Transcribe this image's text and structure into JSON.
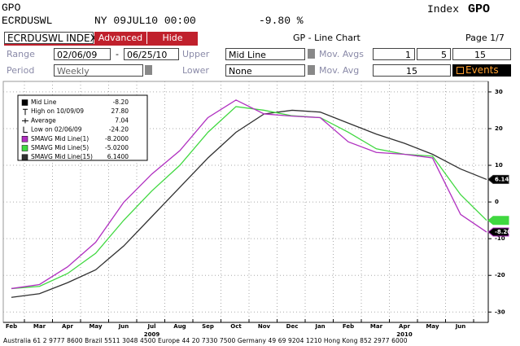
{
  "header": {
    "function": "GPO",
    "ticker": "ECRDUSWL",
    "datetime": "NY 09JUL10 00:00",
    "change": "-9.80 %",
    "screen_prefix": "Index",
    "screen": "GPO"
  },
  "toolbar": {
    "security": "ECRDUSWL INDEX",
    "buttons": [
      "Advanced",
      "Hide"
    ],
    "chart_name": "GP - Line Chart",
    "page": "Page 1/7"
  },
  "settings": {
    "range_label": "Range",
    "start": "02/06/09",
    "dash": "-",
    "end": "06/25/10",
    "upper_label": "Upper",
    "upper": "Mid Line",
    "mov_avgs_label": "Mov. Avgs",
    "mov_avgs": [
      "1",
      "5",
      "15"
    ],
    "period_label": "Period",
    "period": "Weekly",
    "lower_label": "Lower",
    "lower": "None",
    "mov_avg_label": "Mov. Avg",
    "mov_avg": "15",
    "events": "Events"
  },
  "chart_data": {
    "type": "line",
    "categories": [
      "Feb",
      "Mar",
      "Apr",
      "May",
      "Jun",
      "Jul",
      "Aug",
      "Sep",
      "Oct",
      "Nov",
      "Dec",
      "Jan",
      "Feb",
      "Mar",
      "Apr",
      "May",
      "Jun",
      null
    ],
    "years": [
      {
        "label": "2009",
        "category": 5
      },
      {
        "label": "2010",
        "category": 14
      }
    ],
    "stats": [
      {
        "label": "Mid Line",
        "value": "-8.20"
      },
      {
        "label": "High on 10/09/09",
        "value": "27.80"
      },
      {
        "label": "Average",
        "value": "7.04"
      },
      {
        "label": "Low on 02/06/09",
        "value": "-24.20"
      }
    ],
    "series": [
      {
        "name": "SMAVG Mid Line(1)",
        "legend_value": "-8.2000",
        "color": "#b030c0",
        "values": [
          -23.6,
          -22.5,
          -17.7,
          -11,
          -0.1,
          7.6,
          14,
          23,
          27.8,
          24,
          23.4,
          23,
          16.4,
          13.5,
          13,
          12,
          -3.4,
          -8.2
        ]
      },
      {
        "name": "SMAVG Mid Line(5)",
        "legend_value": "-5.0200",
        "color": "#40d840",
        "values": [
          -23.6,
          -23,
          -19.5,
          -14,
          -5,
          3,
          10,
          19,
          26,
          25,
          23.5,
          23,
          19,
          14.5,
          13,
          12.5,
          2,
          -5.02
        ]
      },
      {
        "name": "SMAVG Mid Line(15)",
        "legend_value": "6.1400",
        "color": "#303030",
        "values": [
          -26,
          -25,
          -22,
          -18.5,
          -12,
          -4,
          4,
          12,
          19,
          24,
          25,
          24.5,
          21.5,
          18.5,
          16,
          13,
          9,
          6.14
        ]
      }
    ],
    "axis_flags": [
      {
        "value": 6.14,
        "label": "6.14",
        "series": 2
      },
      {
        "value": -5.02,
        "series": 1
      },
      {
        "value": -8.2,
        "label": "-8.20",
        "series": 0
      }
    ],
    "ylim": [
      -32.6,
      32.2
    ],
    "yticks": [
      30,
      20,
      10,
      0,
      -10,
      -20,
      -30
    ],
    "grid": true
  },
  "footer": "Australia 61 2 9777 8600 Brazil 5511 3048 4500 Europe 44 20 7330 7500 Germany 49 69 9204 1210 Hong Kong 852 2977 6000"
}
